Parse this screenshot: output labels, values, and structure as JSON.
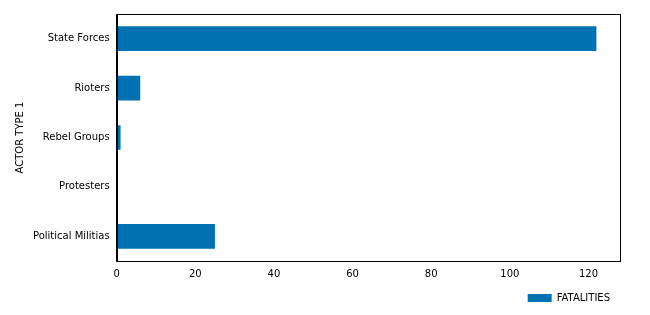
{
  "chart_data": {
    "type": "bar",
    "orientation": "horizontal",
    "y_label": "ACTOR TYPE 1",
    "categories": [
      "State Forces",
      "Rioters",
      "Rebel Groups",
      "Protesters",
      "Political Militias"
    ],
    "series": [
      {
        "name": "FATALITIES",
        "color": "#0072b2",
        "values": [
          122,
          6,
          1,
          0,
          25
        ]
      }
    ],
    "xlim": [
      0,
      128
    ],
    "xticks": [
      0,
      20,
      40,
      60,
      80,
      100,
      120
    ],
    "grid": false,
    "legend": "lower right"
  }
}
